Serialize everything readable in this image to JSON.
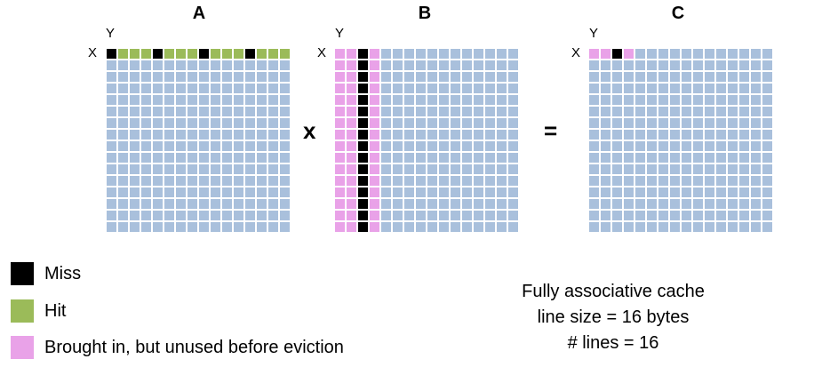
{
  "matrices": {
    "a": {
      "title": "A",
      "row_label": "X",
      "col_label": "Y"
    },
    "b": {
      "title": "B",
      "row_label": "X",
      "col_label": "Y"
    },
    "c": {
      "title": "C",
      "row_label": "X",
      "col_label": "Y"
    }
  },
  "operators": {
    "multiply": "x",
    "equals": "="
  },
  "grid": {
    "rows": 16,
    "cols": 16
  },
  "colors": {
    "default": "#a9c0dc",
    "miss": "#000000",
    "hit": "#9bbb59",
    "brought_in_unused": "#e9a2e8"
  },
  "states": {
    "a": [
      {
        "row": 0,
        "col": 0,
        "state": "miss"
      },
      {
        "row": 0,
        "col": 1,
        "state": "hit"
      },
      {
        "row": 0,
        "col": 2,
        "state": "hit"
      },
      {
        "row": 0,
        "col": 3,
        "state": "hit"
      },
      {
        "row": 0,
        "col": 4,
        "state": "miss"
      },
      {
        "row": 0,
        "col": 5,
        "state": "hit"
      },
      {
        "row": 0,
        "col": 6,
        "state": "hit"
      },
      {
        "row": 0,
        "col": 7,
        "state": "hit"
      },
      {
        "row": 0,
        "col": 8,
        "state": "miss"
      },
      {
        "row": 0,
        "col": 9,
        "state": "hit"
      },
      {
        "row": 0,
        "col": 10,
        "state": "hit"
      },
      {
        "row": 0,
        "col": 11,
        "state": "hit"
      },
      {
        "row": 0,
        "col": 12,
        "state": "miss"
      },
      {
        "row": 0,
        "col": 13,
        "state": "hit"
      },
      {
        "row": 0,
        "col": 14,
        "state": "hit"
      },
      {
        "row": 0,
        "col": 15,
        "state": "hit"
      }
    ],
    "b_columns": {
      "miss_col": 2,
      "unused_cols": [
        0,
        1,
        3
      ]
    },
    "c": [
      {
        "row": 0,
        "col": 0,
        "state": "brought_in_unused"
      },
      {
        "row": 0,
        "col": 1,
        "state": "brought_in_unused"
      },
      {
        "row": 0,
        "col": 2,
        "state": "miss"
      },
      {
        "row": 0,
        "col": 3,
        "state": "brought_in_unused"
      }
    ]
  },
  "legend": [
    {
      "key": "miss",
      "label": "Miss"
    },
    {
      "key": "hit",
      "label": "Hit"
    },
    {
      "key": "brought_in_unused",
      "label": "Brought in, but unused before eviction"
    }
  ],
  "cache_info": {
    "line1": "Fully associative cache",
    "line2": "line size = 16 bytes",
    "line3": "# lines = 16"
  }
}
